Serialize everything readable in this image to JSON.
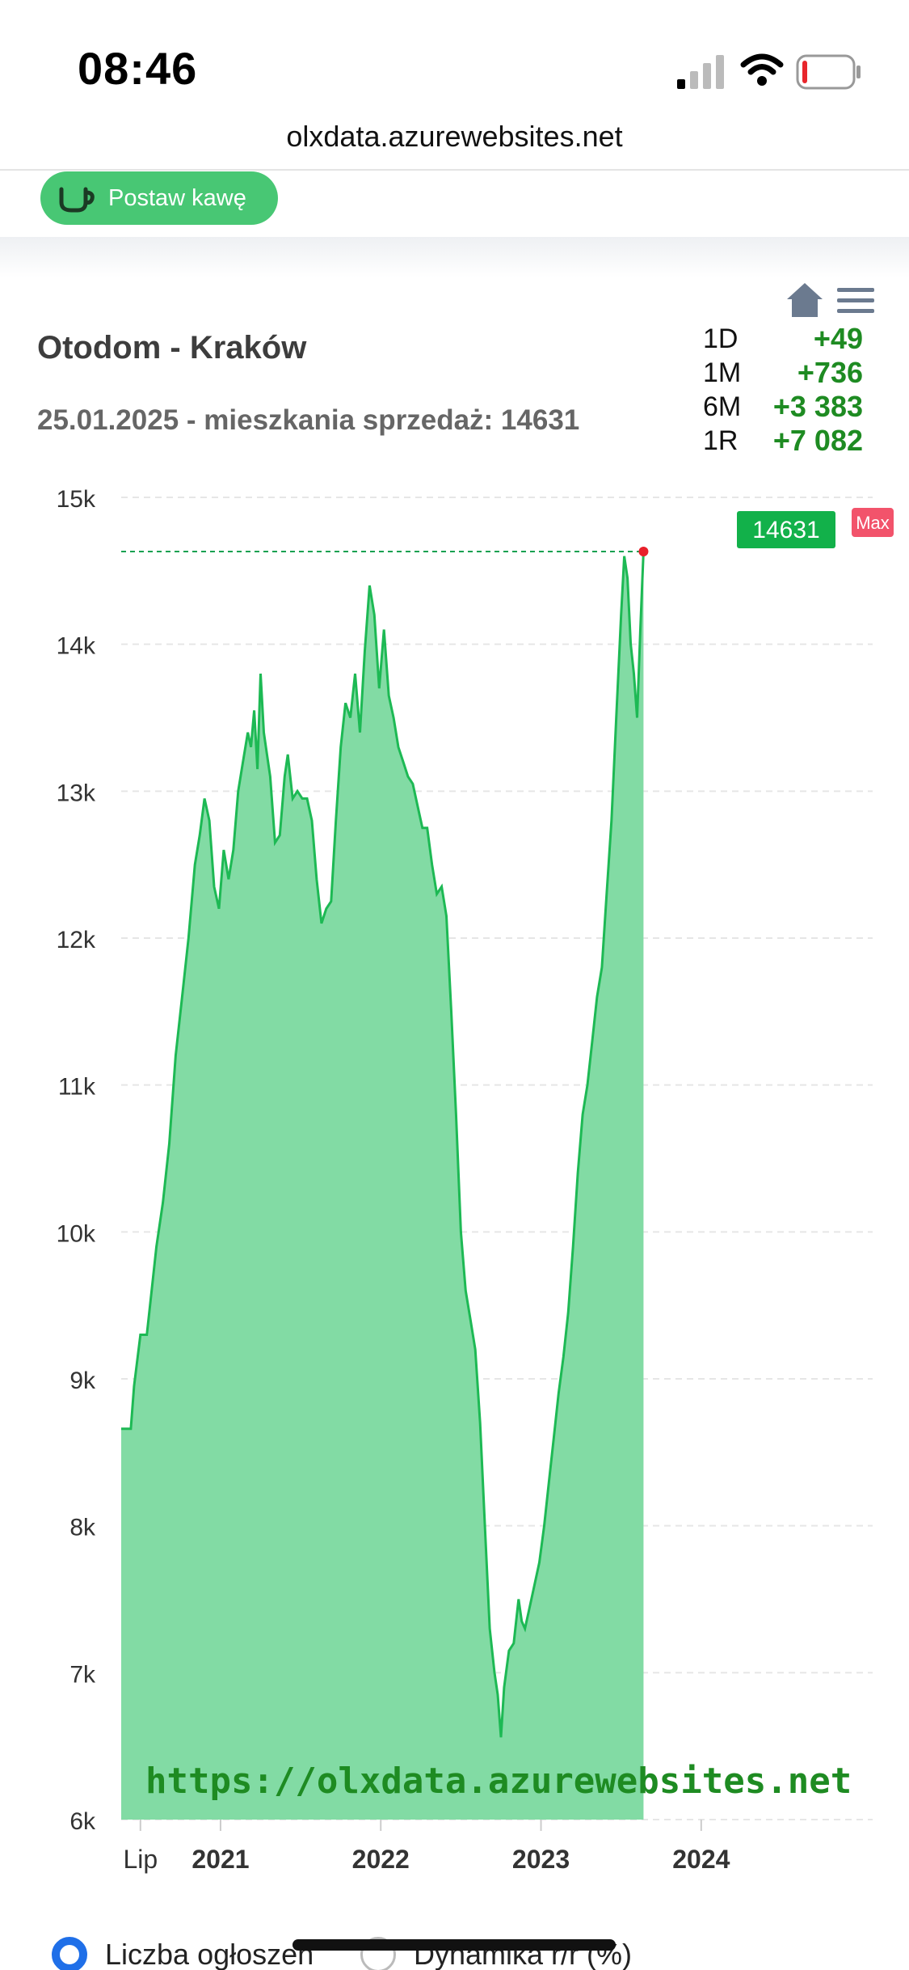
{
  "status_bar": {
    "time": "08:46"
  },
  "browser": {
    "url": "olxdata.azurewebsites.net"
  },
  "header": {
    "coffee_button_label": "Postaw kawę"
  },
  "chart_header": {
    "title": "Otodom - Kraków",
    "subtitle": "25.01.2025 - mieszkania sprzedaż: 14631"
  },
  "stats": [
    {
      "label": "1D",
      "value": "+49"
    },
    {
      "label": "1M",
      "value": "+736"
    },
    {
      "label": "6M",
      "value": "+3 383"
    },
    {
      "label": "1R",
      "value": "+7 082"
    }
  ],
  "chart_data": {
    "type": "area",
    "title": "Otodom - Kraków",
    "subtitle": "25.01.2025 - mieszkania sprzedaż: 14631",
    "ylim": [
      6000,
      15000
    ],
    "y_ticks": [
      "15k",
      "14k",
      "13k",
      "12k",
      "11k",
      "10k",
      "9k",
      "8k",
      "7k",
      "6k"
    ],
    "y_tick_values": [
      15000,
      14000,
      13000,
      12000,
      11000,
      10000,
      9000,
      8000,
      7000,
      6000
    ],
    "x_ticks": [
      {
        "label": "Lip",
        "x": 2020.5,
        "bold": false
      },
      {
        "label": "2021",
        "x": 2021.0,
        "bold": true
      },
      {
        "label": "2022",
        "x": 2022.0,
        "bold": true
      },
      {
        "label": "2023",
        "x": 2023.0,
        "bold": true
      },
      {
        "label": "2024",
        "x": 2024.0,
        "bold": true
      }
    ],
    "xlim": [
      2020.38,
      2025.07
    ],
    "grid": true,
    "last_value_label": "14631",
    "max_label": "Max",
    "max_value": 14631,
    "watermark": "https://olxdata.azurewebsites.net",
    "colors": {
      "line": "#1db954",
      "fill": "#82dba4",
      "label_bg": "#12b14a",
      "max_bg": "#f2536b",
      "max_dot": "#e8202a"
    },
    "series": [
      {
        "values": [
          [
            2020.38,
            8660
          ],
          [
            2020.44,
            8660
          ],
          [
            2020.46,
            8950
          ],
          [
            2020.5,
            9300
          ],
          [
            2020.54,
            9300
          ],
          [
            2020.56,
            9500
          ],
          [
            2020.6,
            9900
          ],
          [
            2020.64,
            10200
          ],
          [
            2020.68,
            10600
          ],
          [
            2020.72,
            11200
          ],
          [
            2020.76,
            11600
          ],
          [
            2020.8,
            12000
          ],
          [
            2020.84,
            12500
          ],
          [
            2020.87,
            12700
          ],
          [
            2020.9,
            12950
          ],
          [
            2020.93,
            12800
          ],
          [
            2020.96,
            12350
          ],
          [
            2020.99,
            12200
          ],
          [
            2021.02,
            12600
          ],
          [
            2021.05,
            12400
          ],
          [
            2021.08,
            12600
          ],
          [
            2021.11,
            13000
          ],
          [
            2021.14,
            13200
          ],
          [
            2021.17,
            13400
          ],
          [
            2021.19,
            13300
          ],
          [
            2021.21,
            13550
          ],
          [
            2021.23,
            13150
          ],
          [
            2021.25,
            13800
          ],
          [
            2021.27,
            13400
          ],
          [
            2021.29,
            13250
          ],
          [
            2021.31,
            13100
          ],
          [
            2021.34,
            12650
          ],
          [
            2021.37,
            12700
          ],
          [
            2021.4,
            13100
          ],
          [
            2021.42,
            13250
          ],
          [
            2021.45,
            12950
          ],
          [
            2021.48,
            13000
          ],
          [
            2021.51,
            12950
          ],
          [
            2021.54,
            12950
          ],
          [
            2021.57,
            12800
          ],
          [
            2021.6,
            12400
          ],
          [
            2021.63,
            12100
          ],
          [
            2021.66,
            12200
          ],
          [
            2021.69,
            12250
          ],
          [
            2021.72,
            12800
          ],
          [
            2021.75,
            13300
          ],
          [
            2021.78,
            13600
          ],
          [
            2021.81,
            13500
          ],
          [
            2021.84,
            13800
          ],
          [
            2021.87,
            13400
          ],
          [
            2021.9,
            13950
          ],
          [
            2021.93,
            14400
          ],
          [
            2021.96,
            14200
          ],
          [
            2021.99,
            13700
          ],
          [
            2022.02,
            14100
          ],
          [
            2022.05,
            13650
          ],
          [
            2022.08,
            13500
          ],
          [
            2022.11,
            13300
          ],
          [
            2022.14,
            13200
          ],
          [
            2022.17,
            13100
          ],
          [
            2022.2,
            13050
          ],
          [
            2022.23,
            12900
          ],
          [
            2022.26,
            12750
          ],
          [
            2022.29,
            12750
          ],
          [
            2022.32,
            12500
          ],
          [
            2022.35,
            12300
          ],
          [
            2022.38,
            12350
          ],
          [
            2022.41,
            12150
          ],
          [
            2022.44,
            11500
          ],
          [
            2022.47,
            10800
          ],
          [
            2022.5,
            10000
          ],
          [
            2022.53,
            9600
          ],
          [
            2022.56,
            9400
          ],
          [
            2022.59,
            9200
          ],
          [
            2022.62,
            8700
          ],
          [
            2022.65,
            8000
          ],
          [
            2022.68,
            7300
          ],
          [
            2022.71,
            7000
          ],
          [
            2022.73,
            6850
          ],
          [
            2022.75,
            6560
          ],
          [
            2022.77,
            6900
          ],
          [
            2022.8,
            7150
          ],
          [
            2022.83,
            7200
          ],
          [
            2022.86,
            7500
          ],
          [
            2022.88,
            7350
          ],
          [
            2022.9,
            7300
          ],
          [
            2022.93,
            7450
          ],
          [
            2022.96,
            7600
          ],
          [
            2022.99,
            7750
          ],
          [
            2023.02,
            8000
          ],
          [
            2023.05,
            8300
          ],
          [
            2023.08,
            8600
          ],
          [
            2023.11,
            8900
          ],
          [
            2023.14,
            9150
          ],
          [
            2023.17,
            9450
          ],
          [
            2023.2,
            9900
          ],
          [
            2023.23,
            10400
          ],
          [
            2023.26,
            10800
          ],
          [
            2023.29,
            11000
          ],
          [
            2023.32,
            11300
          ],
          [
            2023.35,
            11600
          ],
          [
            2023.38,
            11800
          ],
          [
            2023.41,
            12300
          ],
          [
            2023.44,
            12800
          ],
          [
            2023.47,
            13500
          ],
          [
            2023.5,
            14200
          ],
          [
            2023.52,
            14600
          ],
          [
            2023.54,
            14450
          ],
          [
            2023.56,
            14000
          ],
          [
            2023.58,
            13800
          ],
          [
            2023.6,
            13500
          ],
          [
            2023.62,
            14100
          ],
          [
            2023.64,
            14631
          ]
        ]
      }
    ]
  },
  "legend": {
    "option1": "Liczba ogłoszeń",
    "option2": "Dynamika r/r (%)"
  }
}
